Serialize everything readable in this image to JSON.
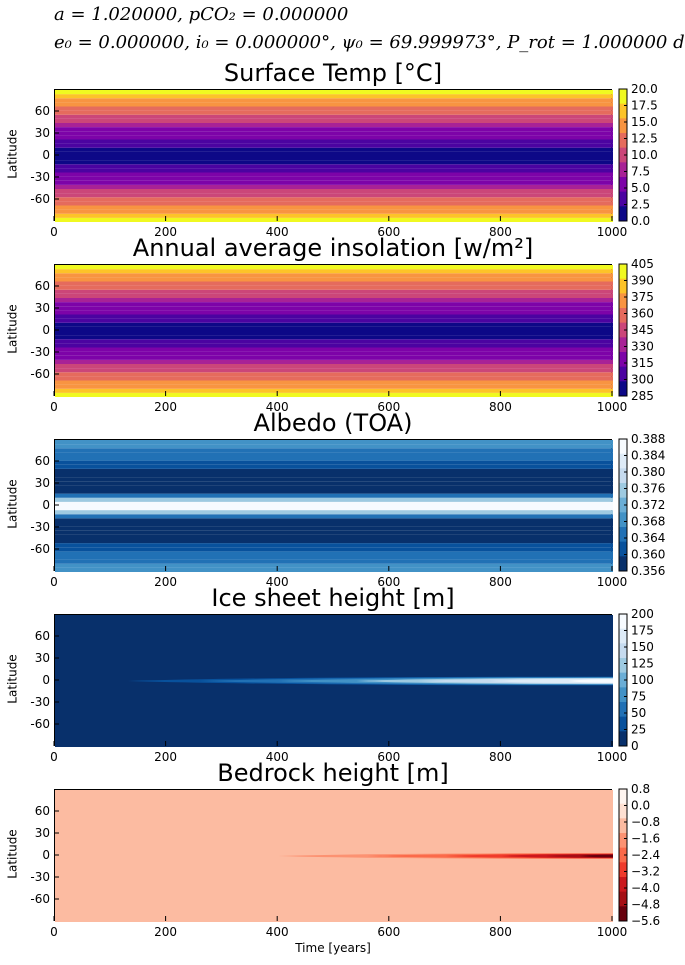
{
  "header": {
    "line1": "a = 1.020000, pCO₂ = 0.000000",
    "line2": "e₀ = 0.000000, i₀ = 0.000000°, ψ₀ = 69.999973°, P_rot = 1.000000 d"
  },
  "chart_data": [
    {
      "type": "heatmap",
      "title": "Surface Temp [°C]",
      "ylabel": "Latitude",
      "xlabel": "",
      "xlim": [
        0,
        1000
      ],
      "ylim": [
        -90,
        90
      ],
      "xticks": [
        0,
        200,
        400,
        600,
        800,
        1000
      ],
      "yticks": [
        60,
        30,
        0,
        -30,
        -60
      ],
      "colormap": "plasma",
      "colorbar_ticks": [
        "20.0",
        "17.5",
        "15.0",
        "12.5",
        "10.0",
        "7.5",
        "5.0",
        "2.5",
        "0.0"
      ],
      "colors": [
        "#0d0887",
        "#4b03a1",
        "#7d03a8",
        "#a82296",
        "#cb4679",
        "#e56b5d",
        "#f89441",
        "#fdc328",
        "#f0f921"
      ],
      "pattern": "zonal bands: lowest at equator, highest toward poles, constant over time"
    },
    {
      "type": "heatmap",
      "title": "Annual average insolation [w/m²]",
      "ylabel": "Latitude",
      "xlabel": "",
      "xlim": [
        0,
        1000
      ],
      "ylim": [
        -90,
        90
      ],
      "xticks": [
        0,
        200,
        400,
        600,
        800,
        1000
      ],
      "yticks": [
        60,
        30,
        0,
        -30,
        -60
      ],
      "colormap": "plasma",
      "colorbar_ticks": [
        "405",
        "390",
        "375",
        "360",
        "345",
        "330",
        "315",
        "300",
        "285"
      ],
      "colors": [
        "#0d0887",
        "#4b03a1",
        "#7d03a8",
        "#a82296",
        "#cb4679",
        "#e56b5d",
        "#f89441",
        "#fdc328",
        "#f0f921"
      ],
      "pattern": "zonal bands: lowest at equator, highest toward poles, constant over time"
    },
    {
      "type": "heatmap",
      "title": "Albedo (TOA)",
      "ylabel": "Latitude",
      "xlabel": "",
      "xlim": [
        0,
        1000
      ],
      "ylim": [
        -90,
        90
      ],
      "xticks": [
        0,
        200,
        400,
        600,
        800,
        1000
      ],
      "yticks": [
        60,
        30,
        0,
        -30,
        -60
      ],
      "colormap": "Blues",
      "colorbar_ticks": [
        "0.388",
        "0.384",
        "0.380",
        "0.376",
        "0.372",
        "0.368",
        "0.364",
        "0.360",
        "0.356"
      ],
      "colors": [
        "#08306b",
        "#08519c",
        "#2171b5",
        "#4292c6",
        "#6baed6",
        "#9ecae1",
        "#c6dbef",
        "#deebf7",
        "#f7fbff"
      ],
      "pattern": "bright band at equator, darkest at mid-latitudes, medium near poles"
    },
    {
      "type": "heatmap",
      "title": "Ice sheet height [m]",
      "ylabel": "Latitude",
      "xlabel": "",
      "xlim": [
        0,
        1000
      ],
      "ylim": [
        -90,
        90
      ],
      "xticks": [
        0,
        200,
        400,
        600,
        800,
        1000
      ],
      "yticks": [
        60,
        30,
        0,
        -30,
        -60
      ],
      "colormap": "Blues",
      "colorbar_ticks": [
        "200",
        "175",
        "150",
        "125",
        "100",
        "75",
        "50",
        "25",
        "0"
      ],
      "colors": [
        "#08306b",
        "#08519c",
        "#2171b5",
        "#4292c6",
        "#6baed6",
        "#9ecae1",
        "#c6dbef",
        "#deebf7",
        "#f7fbff"
      ],
      "pattern": "ice grows at the equator from about year 130 to 1000"
    },
    {
      "type": "heatmap",
      "title": "Bedrock height [m]",
      "ylabel": "Latitude",
      "xlabel": "Time [years]",
      "xlim": [
        0,
        1000
      ],
      "ylim": [
        -90,
        90
      ],
      "xticks": [
        0,
        200,
        400,
        600,
        800,
        1000
      ],
      "yticks": [
        60,
        30,
        0,
        -30,
        -60
      ],
      "colormap": "Reds_r",
      "colorbar_ticks": [
        "0.8",
        "0.0",
        "−0.8",
        "−1.6",
        "−2.4",
        "−3.2",
        "−4.0",
        "−4.8",
        "−5.6"
      ],
      "colors": [
        "#67000d",
        "#a50f15",
        "#cb181d",
        "#ef3b2c",
        "#fb6a4a",
        "#fc9272",
        "#fcbba1",
        "#fee0d2",
        "#fff5f0"
      ],
      "pattern": "depression at the equator from about year 400 to 1000"
    }
  ]
}
